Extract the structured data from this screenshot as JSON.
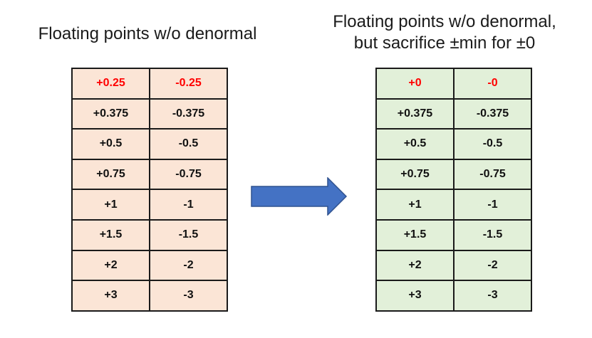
{
  "left_panel": {
    "title": "Floating points w/o denormal",
    "header_color": "#ff0000",
    "fill_color": "#fbe5d6",
    "rows": [
      [
        "+0.25",
        "-0.25"
      ],
      [
        "+0.375",
        "-0.375"
      ],
      [
        "+0.5",
        "-0.5"
      ],
      [
        "+0.75",
        "-0.75"
      ],
      [
        "+1",
        "-1"
      ],
      [
        "+1.5",
        "-1.5"
      ],
      [
        "+2",
        "-2"
      ],
      [
        "+3",
        "-3"
      ]
    ]
  },
  "right_panel": {
    "title_line1": "Floating points w/o denormal,",
    "title_line2": "but sacrifice ±min for ±0",
    "header_color": "#ff0000",
    "fill_color": "#e2f0d9",
    "rows": [
      [
        "+0",
        "-0"
      ],
      [
        "+0.375",
        "-0.375"
      ],
      [
        "+0.5",
        "-0.5"
      ],
      [
        "+0.75",
        "-0.75"
      ],
      [
        "+1",
        "-1"
      ],
      [
        "+1.5",
        "-1.5"
      ],
      [
        "+2",
        "-2"
      ],
      [
        "+3",
        "-3"
      ]
    ]
  },
  "arrow": {
    "direction": "right",
    "fill_color": "#4472c4",
    "stroke_color": "#2f528f"
  }
}
